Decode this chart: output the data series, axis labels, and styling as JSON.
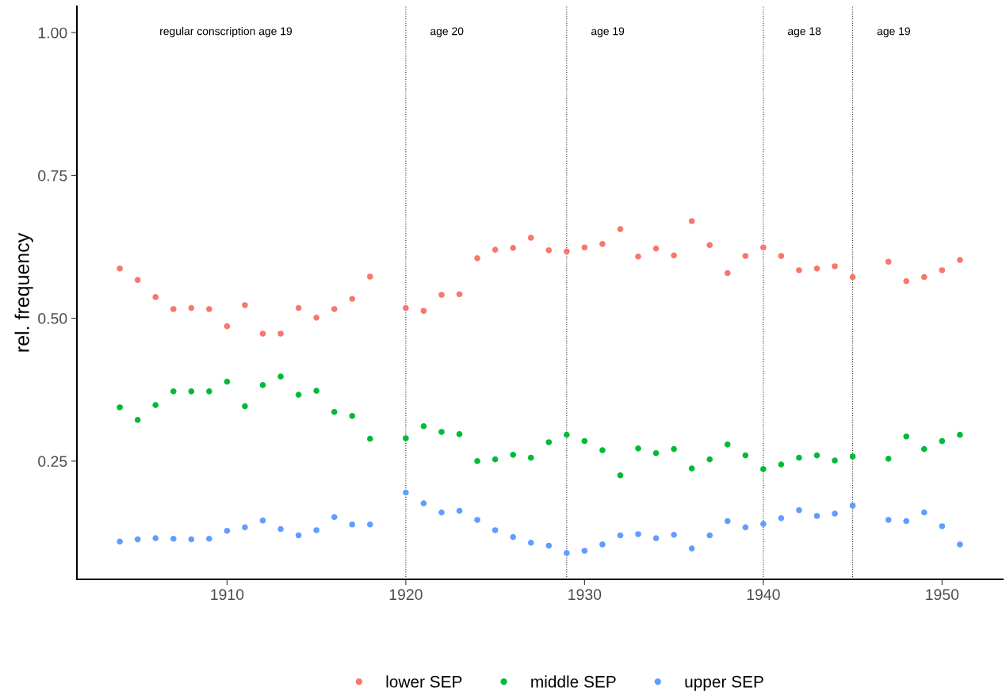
{
  "chart_data": {
    "type": "scatter",
    "ylabel": "rel. frequency",
    "x": [
      1904,
      1905,
      1906,
      1907,
      1908,
      1909,
      1910,
      1911,
      1912,
      1913,
      1914,
      1915,
      1916,
      1917,
      1918,
      1920,
      1921,
      1922,
      1923,
      1924,
      1925,
      1926,
      1927,
      1928,
      1929,
      1930,
      1931,
      1932,
      1933,
      1934,
      1935,
      1936,
      1937,
      1938,
      1939,
      1940,
      1941,
      1942,
      1943,
      1944,
      1945,
      1947,
      1948,
      1949,
      1950,
      1951
    ],
    "series": [
      {
        "name": "lower SEP",
        "color": "#f8766d",
        "values": [
          0.587,
          0.567,
          0.537,
          0.516,
          0.518,
          0.516,
          0.486,
          0.523,
          0.473,
          0.473,
          0.518,
          0.501,
          0.516,
          0.534,
          0.573,
          0.518,
          0.513,
          0.541,
          0.542,
          0.605,
          0.62,
          0.623,
          0.641,
          0.619,
          0.617,
          0.624,
          0.63,
          0.656,
          0.608,
          0.622,
          0.61,
          0.67,
          0.628,
          0.579,
          0.609,
          0.624,
          0.609,
          0.584,
          0.587,
          0.591,
          0.572,
          0.599,
          0.565,
          0.572,
          0.584,
          0.602
        ]
      },
      {
        "name": "middle SEP",
        "color": "#00ba38",
        "values": [
          0.344,
          0.322,
          0.348,
          0.372,
          0.372,
          0.372,
          0.389,
          0.346,
          0.383,
          0.398,
          0.366,
          0.373,
          0.336,
          0.329,
          0.289,
          0.29,
          0.311,
          0.301,
          0.297,
          0.25,
          0.253,
          0.261,
          0.256,
          0.283,
          0.296,
          0.285,
          0.269,
          0.225,
          0.272,
          0.264,
          0.271,
          0.237,
          0.253,
          0.279,
          0.26,
          0.236,
          0.244,
          0.256,
          0.26,
          0.251,
          0.258,
          0.254,
          0.293,
          0.271,
          0.285,
          0.296
        ]
      },
      {
        "name": "upper SEP",
        "color": "#619cff",
        "values": [
          0.109,
          0.113,
          0.115,
          0.114,
          0.113,
          0.114,
          0.128,
          0.134,
          0.146,
          0.131,
          0.12,
          0.129,
          0.152,
          0.139,
          0.139,
          0.195,
          0.176,
          0.16,
          0.163,
          0.147,
          0.129,
          0.117,
          0.107,
          0.102,
          0.089,
          0.093,
          0.104,
          0.12,
          0.122,
          0.115,
          0.121,
          0.097,
          0.12,
          0.145,
          0.134,
          0.14,
          0.15,
          0.164,
          0.154,
          0.158,
          0.172,
          0.147,
          0.145,
          0.16,
          0.136,
          0.104
        ]
      }
    ],
    "xlim": [
      1901.6,
      1953.4
    ],
    "xticks": [
      1910,
      1920,
      1930,
      1940,
      1950
    ],
    "ylim": [
      0.043,
      1.046
    ],
    "yticks": [
      {
        "value": 0.25,
        "label": "0.25"
      },
      {
        "value": 0.5,
        "label": "0.50"
      },
      {
        "value": 0.75,
        "label": "0.75"
      },
      {
        "value": 1.0,
        "label": "1.00"
      }
    ],
    "ref_lines": [
      {
        "axis": "x",
        "value": 1920,
        "line_style": "dotted",
        "color": "#333333"
      },
      {
        "axis": "x",
        "value": 1929,
        "line_style": "dotted",
        "color": "#333333"
      },
      {
        "axis": "x",
        "value": 1940,
        "line_style": "dotted",
        "color": "#333333"
      },
      {
        "axis": "x",
        "value": 1945,
        "line_style": "dotted",
        "color": "#333333"
      }
    ],
    "annotations": [
      "regular conscription age 19",
      "age 20",
      "age 19",
      "age 18",
      "age 19"
    ],
    "marker": "circle",
    "grid": false,
    "legend": "bottom"
  }
}
